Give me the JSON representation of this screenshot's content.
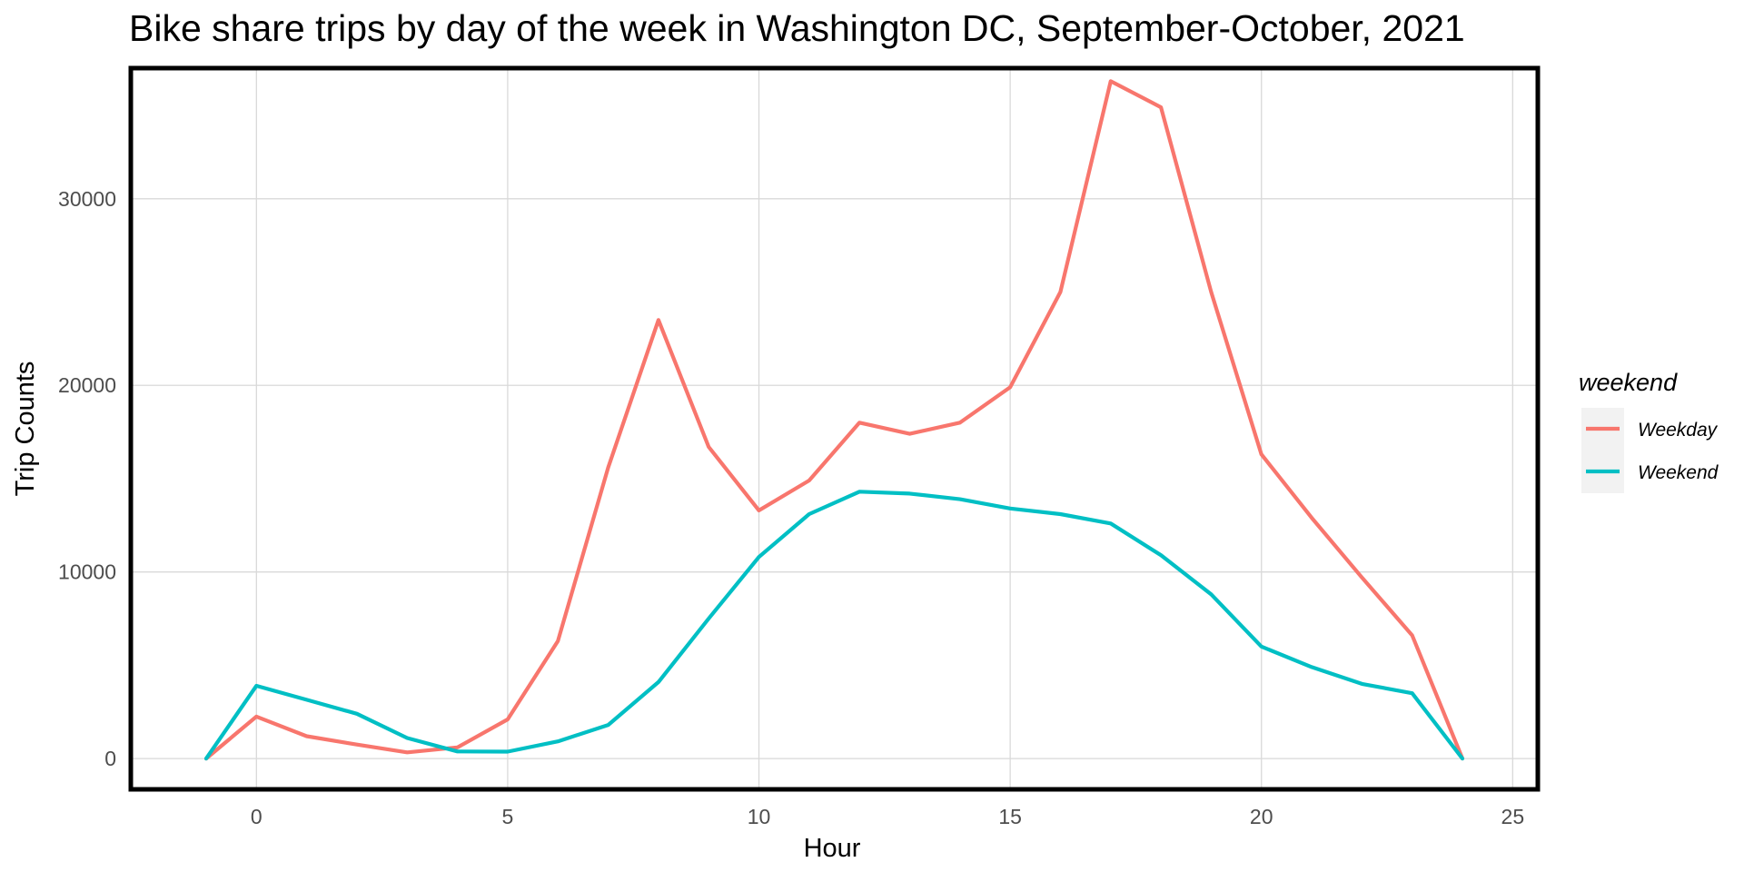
{
  "chart_data": {
    "type": "line",
    "title": "Bike share trips by day of the week in Washington DC, September-October, 2021",
    "xlabel": "Hour",
    "ylabel": "Trip Counts",
    "xlim": [
      -2.5,
      25.5
    ],
    "ylim": [
      -1650,
      37000
    ],
    "x_ticks": [
      0,
      5,
      10,
      15,
      20,
      25
    ],
    "y_ticks": [
      0,
      10000,
      20000,
      30000
    ],
    "x_tick_labels": [
      "0",
      "5",
      "10",
      "15",
      "20",
      "25"
    ],
    "y_tick_labels": [
      "0",
      "10000",
      "20000",
      "30000"
    ],
    "grid": true,
    "legend_title": "weekend",
    "legend_position": "right",
    "series": [
      {
        "name": "Weekday",
        "color": "#F8766D",
        "x": [
          -1,
          0,
          1,
          2,
          3,
          4,
          5,
          6,
          7,
          8,
          9,
          10,
          11,
          12,
          13,
          14,
          15,
          16,
          17,
          18,
          19,
          20,
          21,
          22,
          23,
          24
        ],
        "y": [
          0,
          2250,
          1200,
          750,
          330,
          600,
          2100,
          6300,
          15600,
          23500,
          16700,
          13300,
          14900,
          18000,
          17400,
          18000,
          19900,
          25000,
          36300,
          34900,
          25000,
          16300,
          12900,
          9700,
          6600,
          0
        ]
      },
      {
        "name": "Weekend",
        "color": "#00BFC4",
        "x": [
          -1,
          0,
          1,
          2,
          3,
          4,
          5,
          6,
          7,
          8,
          9,
          10,
          11,
          12,
          13,
          14,
          15,
          16,
          17,
          18,
          19,
          20,
          21,
          22,
          23,
          24
        ],
        "y": [
          0,
          3900,
          3150,
          2400,
          1100,
          380,
          370,
          920,
          1800,
          4100,
          7500,
          10800,
          13100,
          14300,
          14200,
          13900,
          13400,
          13100,
          12600,
          10900,
          8800,
          6000,
          4900,
          4000,
          3500,
          0
        ]
      }
    ]
  }
}
